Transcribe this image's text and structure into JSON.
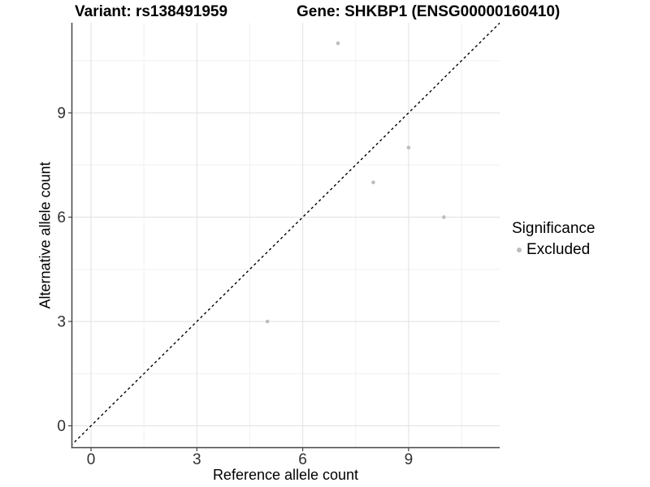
{
  "chart_data": {
    "type": "scatter",
    "titles": [
      "Variant: rs138491959",
      "Gene: SHKBP1 (ENSG00000160410)"
    ],
    "xlabel": "Reference allele count",
    "ylabel": "Alternative allele count",
    "x_ticks": [
      0,
      3,
      6,
      9
    ],
    "y_ticks": [
      0,
      3,
      6,
      9
    ],
    "minor_gridlines": [
      1.5,
      4.5,
      7.5,
      10.5
    ],
    "xlim": [
      -0.6,
      11.6
    ],
    "ylim": [
      -0.65,
      11.6
    ],
    "grid": true,
    "identity_line": {
      "style": "dashed",
      "color": "#000000"
    },
    "series": [
      {
        "name": "Excluded",
        "color": "#bdbdbd",
        "points": [
          [
            5,
            3
          ],
          [
            7,
            11
          ],
          [
            8,
            7
          ],
          [
            9,
            8
          ],
          [
            10,
            6
          ]
        ]
      }
    ],
    "legend": {
      "title": "Significance",
      "position": "right",
      "items": [
        {
          "label": "Excluded",
          "color": "#bdbdbd"
        }
      ]
    },
    "colors": {
      "axis_line": "#464646",
      "tick_text": "#303030",
      "major_grid": "#e3e3e3",
      "minor_grid": "#f0f0f0",
      "point": "#bdbdbd"
    }
  }
}
